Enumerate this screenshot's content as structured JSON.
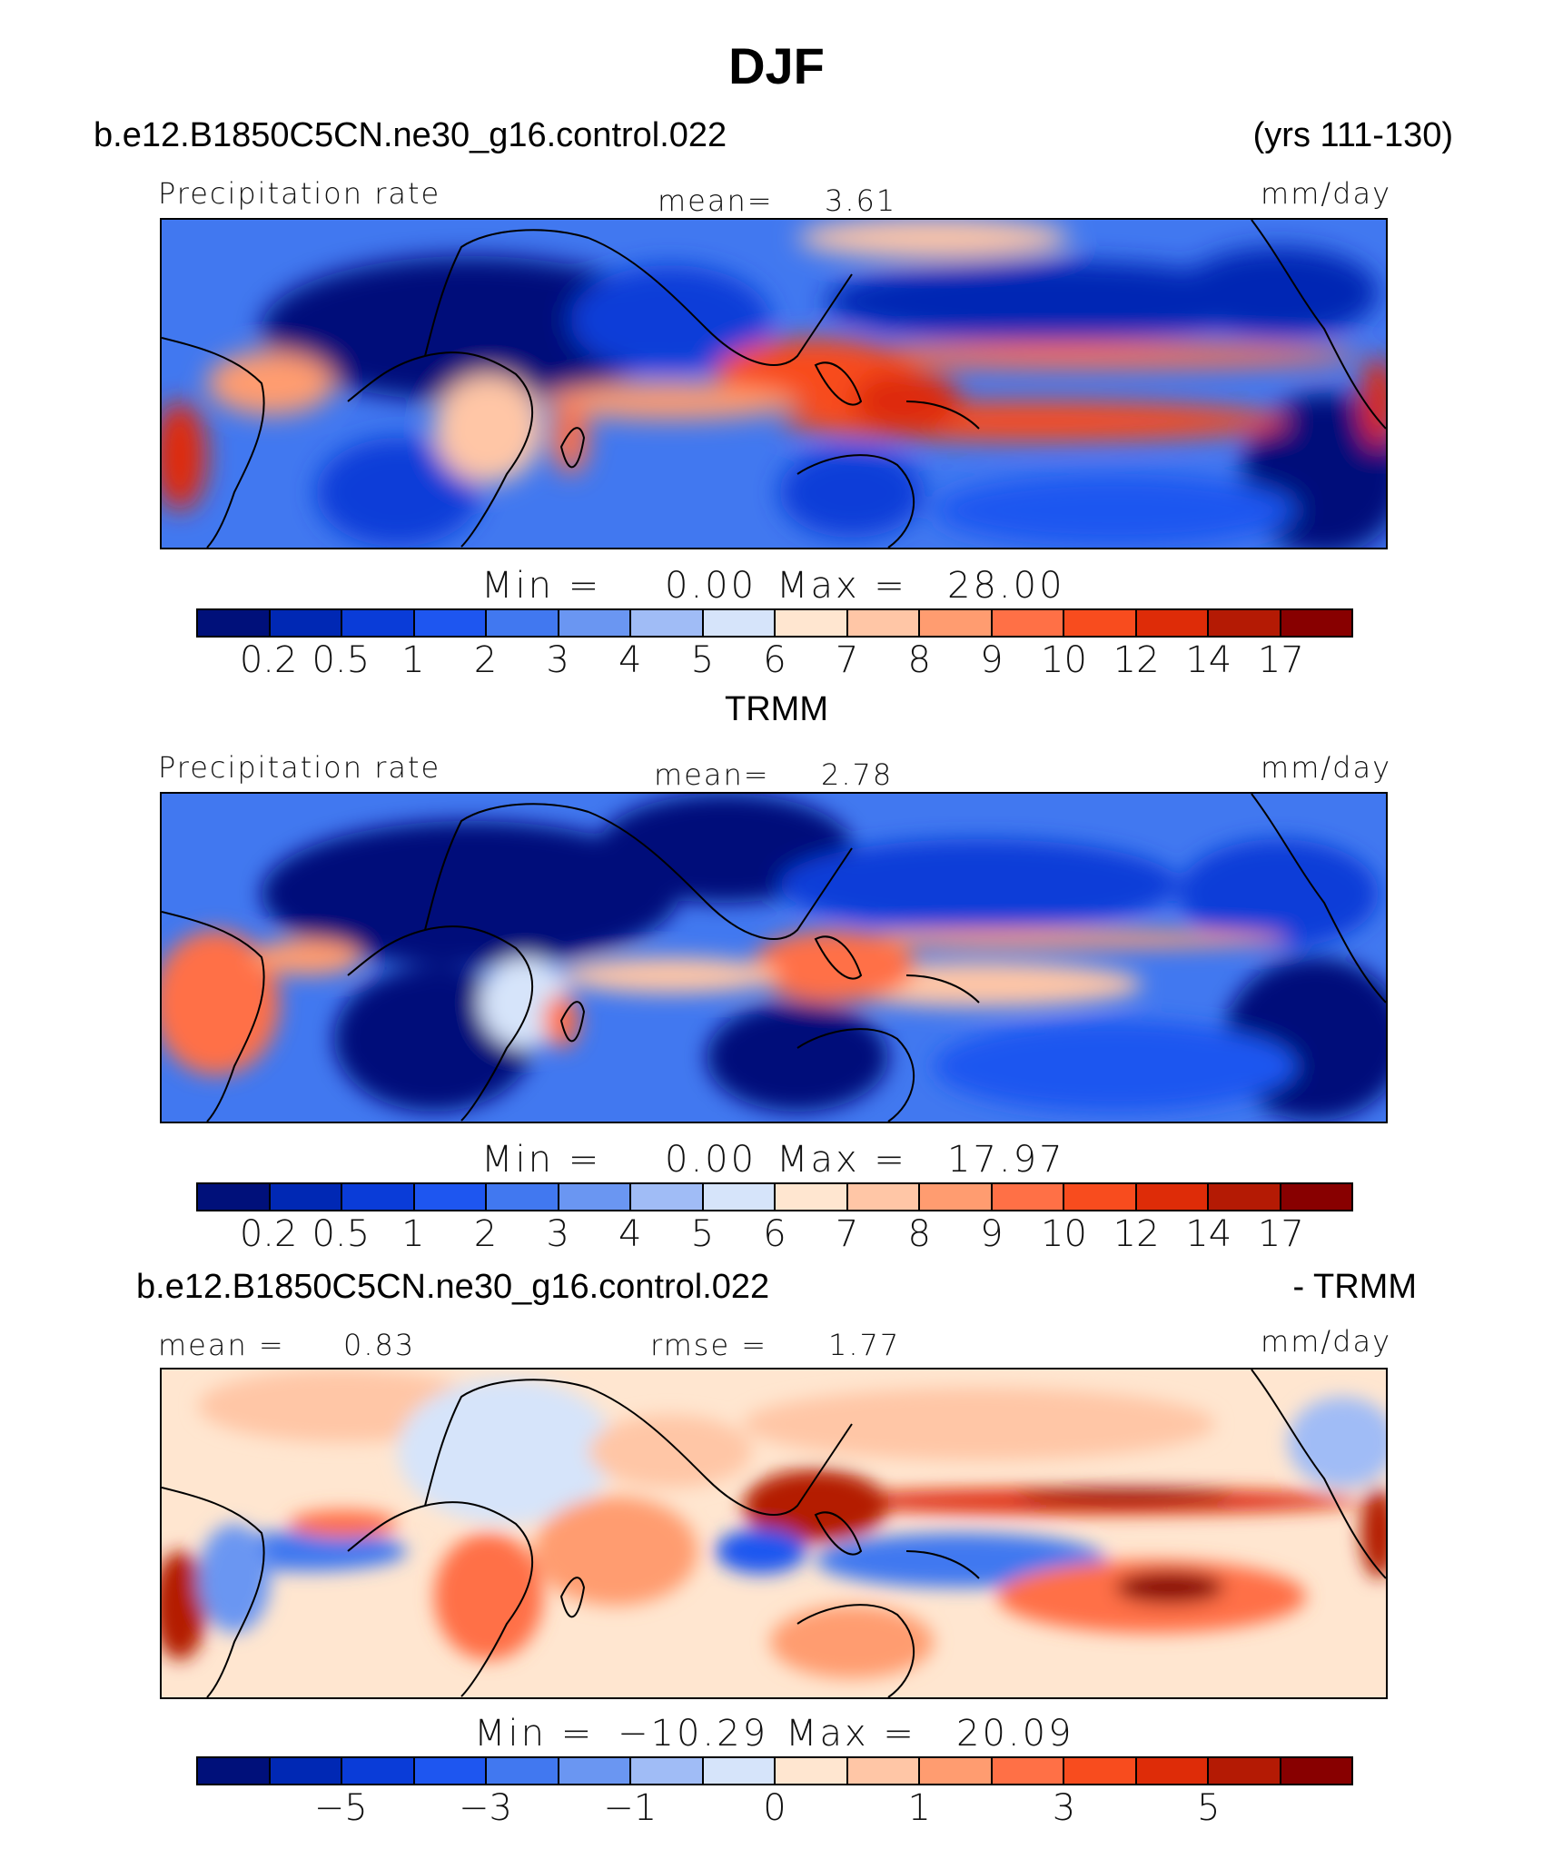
{
  "title": "DJF",
  "case_name": "b.e12.B1850C5CN.ne30_g16.control.022",
  "years": "(yrs 111-130)",
  "panels": {
    "model": {
      "left_label": "Precipitation rate",
      "mean_label": "mean=",
      "mean_value": "3.61",
      "units": "mm/day",
      "min_label": "Min =",
      "min_value": "0.00",
      "max_label": "Max =",
      "max_value": "28.00"
    },
    "obs": {
      "section_title": "TRMM",
      "left_label": "Precipitation rate",
      "mean_label": "mean=",
      "mean_value": "2.78",
      "units": "mm/day",
      "min_label": "Min =",
      "min_value": "0.00",
      "max_label": "Max =",
      "max_value": "17.97"
    },
    "diff": {
      "case_name": "b.e12.B1850C5CN.ne30_g16.control.022",
      "minus_label": "- TRMM",
      "mean_label": "mean =",
      "mean_value": "0.83",
      "rmse_label": "rmse =",
      "rmse_value": "1.77",
      "units": "mm/day",
      "min_label": "Min =",
      "min_value": "−10.29",
      "max_label": "Max =",
      "max_value": "20.09"
    }
  },
  "colorbar_precip": {
    "colors": [
      "#00107a",
      "#0028b4",
      "#0a3cd8",
      "#1e56f0",
      "#4178f0",
      "#6a96f2",
      "#a0bcf6",
      "#d6e4fa",
      "#ffe6d0",
      "#ffc6a6",
      "#ff9c70",
      "#ff7046",
      "#f84c1e",
      "#de2c08",
      "#b41a04",
      "#880000"
    ],
    "ticks": [
      "0.2",
      "0.5",
      "1",
      "2",
      "3",
      "4",
      "5",
      "6",
      "7",
      "8",
      "9",
      "10",
      "12",
      "14",
      "17"
    ]
  },
  "colorbar_diff": {
    "colors": [
      "#00107a",
      "#0028b4",
      "#0a3cd8",
      "#1e56f0",
      "#4178f0",
      "#6a96f2",
      "#a0bcf6",
      "#d6e4fa",
      "#ffe6d0",
      "#ffc6a6",
      "#ff9c70",
      "#ff7046",
      "#f84c1e",
      "#de2c08",
      "#b41a04",
      "#880000"
    ],
    "ticks": [
      "",
      "−5",
      "",
      "−3",
      "",
      "−1",
      "",
      "0",
      "",
      "1",
      "",
      "3",
      "",
      "5",
      ""
    ]
  }
}
